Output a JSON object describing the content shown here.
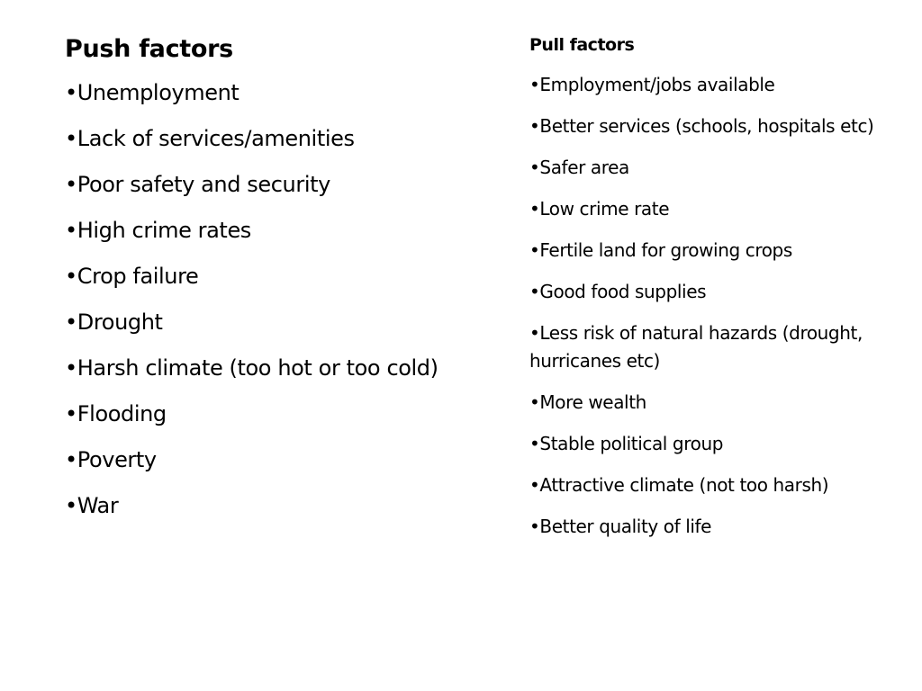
{
  "push": {
    "heading": "Push factors",
    "items": [
      "Unemployment",
      "Lack of services/amenities",
      "Poor safety and security",
      "High crime rates",
      "Crop failure",
      "Drought",
      "Harsh climate (too hot or too cold)",
      "Flooding",
      "Poverty",
      "War"
    ]
  },
  "pull": {
    "heading": "Pull factors",
    "items": [
      "Employment/jobs available",
      "Better services (schools, hospitals etc)",
      "Safer area",
      "Low crime rate",
      "Fertile land for growing crops",
      "Good food supplies",
      "Less risk of natural hazards (drought, hurricanes etc)",
      "More wealth",
      "Stable political group",
      "Attractive climate (not too harsh)",
      "Better quality of life"
    ]
  },
  "bullet_glyph": "•"
}
